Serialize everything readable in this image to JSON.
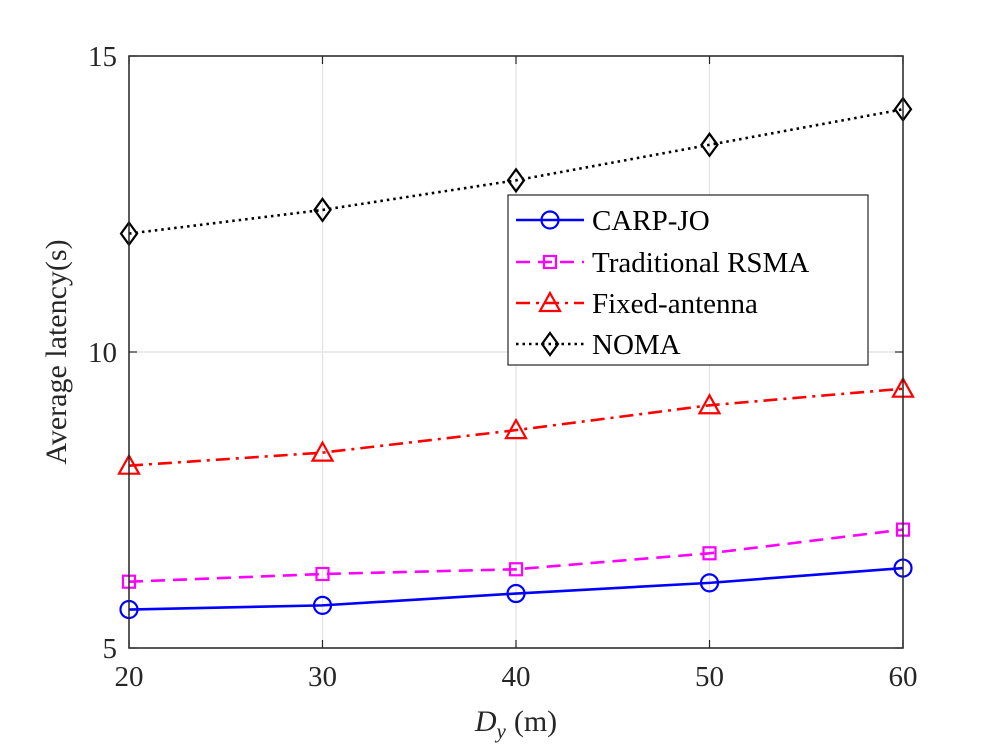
{
  "chart_data": {
    "type": "line",
    "xlabel_var": "D",
    "xlabel_sub": "y",
    "xlabel_unit": "(m)",
    "ylabel": "Average latency(s)",
    "xlim": [
      20,
      60
    ],
    "ylim": [
      5,
      15
    ],
    "xticks": [
      "20",
      "30",
      "40",
      "50",
      "60"
    ],
    "yticks": [
      "5",
      "10",
      "15"
    ],
    "grid": true,
    "legend_position": "top-right",
    "x": [
      20,
      30,
      40,
      50,
      60
    ],
    "series": [
      {
        "name": "CARP-JO",
        "values": [
          5.65,
          5.72,
          5.92,
          6.1,
          6.35
        ],
        "color": "#0000ff",
        "dash": "solid",
        "marker": "circle"
      },
      {
        "name": "Traditional RSMA",
        "values": [
          6.12,
          6.25,
          6.33,
          6.6,
          7.0
        ],
        "color": "#ff00ff",
        "dash": "dashed",
        "marker": "square"
      },
      {
        "name": "Fixed-antenna",
        "values": [
          8.08,
          8.3,
          8.68,
          9.1,
          9.38
        ],
        "color": "#ff0000",
        "dash": "dashdot",
        "marker": "triangle"
      },
      {
        "name": "NOMA",
        "values": [
          12.0,
          12.4,
          12.9,
          13.5,
          14.1
        ],
        "color": "#000000",
        "dash": "dotted",
        "marker": "diamond"
      }
    ]
  }
}
